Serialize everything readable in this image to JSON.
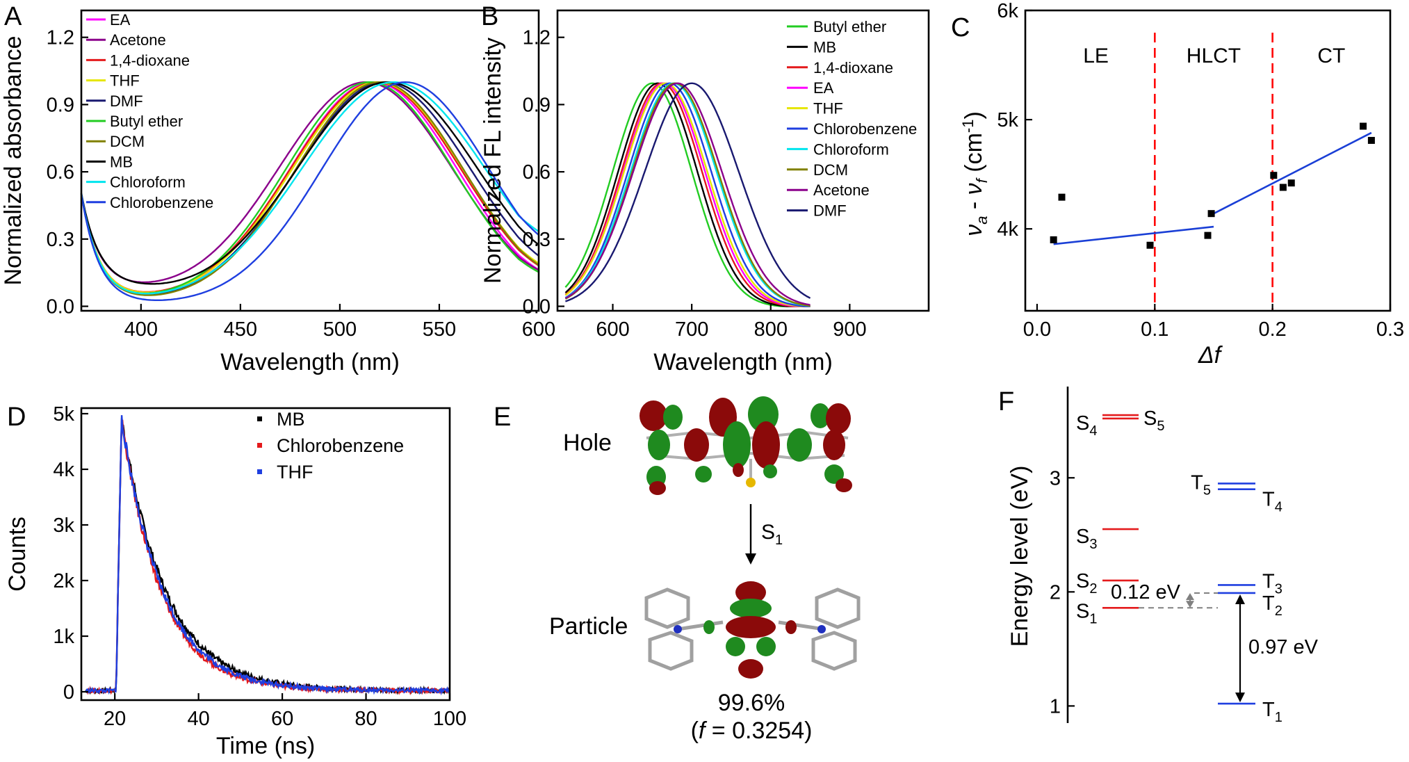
{
  "chart_data": [
    {
      "panel": "A",
      "type": "line",
      "xlabel": "Wavelength (nm)",
      "ylabel": "Normalized absorbance",
      "xlim": [
        370,
        600
      ],
      "ylim": [
        -0.02,
        1.32
      ],
      "xticks": [
        400,
        450,
        500,
        550,
        600
      ],
      "yticks": [
        0.0,
        0.3,
        0.6,
        0.9,
        1.2
      ],
      "xtick_labels": [
        "400",
        "450",
        "500",
        "550",
        "600"
      ],
      "ytick_labels": [
        "0.0",
        "0.3",
        "0.6",
        "0.9",
        "1.2"
      ],
      "series": [
        {
          "name": "EA",
          "color": "#ff00ff",
          "peak": 517,
          "fwhm": 100,
          "end": 0.05,
          "base": 0.02
        },
        {
          "name": "Acetone",
          "color": "#8b008b",
          "peak": 513,
          "fwhm": 104,
          "end": 0.06,
          "base": 0.07
        },
        {
          "name": "1,4-dioxane",
          "color": "#e41a1c",
          "peak": 518,
          "fwhm": 102,
          "end": 0.05,
          "base": 0.03
        },
        {
          "name": "THF",
          "color": "#e6e600",
          "peak": 519,
          "fwhm": 102,
          "end": 0.06,
          "base": 0.03
        },
        {
          "name": "DMF",
          "color": "#191970",
          "peak": 522,
          "fwhm": 104,
          "end": 0.05,
          "base": 0.02
        },
        {
          "name": "Butyl ether",
          "color": "#22cc22",
          "peak": 515,
          "fwhm": 100,
          "end": 0.06,
          "base": 0.02
        },
        {
          "name": "DCM",
          "color": "#808000",
          "peak": 520,
          "fwhm": 100,
          "end": 0.05,
          "base": 0.02
        },
        {
          "name": "MB",
          "color": "#000000",
          "peak": 524,
          "fwhm": 108,
          "end": 0.07,
          "base": 0.08
        },
        {
          "name": "Chloroform",
          "color": "#00e5ee",
          "peak": 527,
          "fwhm": 110,
          "end": 0.13,
          "base": 0.02
        },
        {
          "name": "Chlorobenzene",
          "color": "#1f3fe0",
          "peak": 533,
          "fwhm": 100,
          "end": 0.1,
          "base": 0.01
        }
      ]
    },
    {
      "panel": "B",
      "type": "line",
      "xlabel": "Wavelength (nm)",
      "ylabel": "Normalized FL intensity",
      "xlim": [
        530,
        1000
      ],
      "ylim": [
        -0.02,
        1.32
      ],
      "xticks": [
        600,
        700,
        800,
        900
      ],
      "yticks": [
        0.0,
        0.3,
        0.6,
        0.9,
        1.2
      ],
      "xtick_labels": [
        "600",
        "700",
        "800",
        "900"
      ],
      "ytick_labels": [
        "0.0",
        "0.3",
        "0.6",
        "0.9",
        "1.2"
      ],
      "x_range": [
        540,
        850
      ],
      "series": [
        {
          "name": "Butyl ether",
          "color": "#22cc22",
          "peak": 650,
          "fwhm": 118
        },
        {
          "name": "MB",
          "color": "#000000",
          "peak": 657,
          "fwhm": 118
        },
        {
          "name": "1,4-dioxane",
          "color": "#e41a1c",
          "peak": 662,
          "fwhm": 120
        },
        {
          "name": "EA",
          "color": "#ff00ff",
          "peak": 665,
          "fwhm": 122
        },
        {
          "name": "THF",
          "color": "#e6e600",
          "peak": 667,
          "fwhm": 124
        },
        {
          "name": "Chlorobenzene",
          "color": "#1f3fe0",
          "peak": 672,
          "fwhm": 124
        },
        {
          "name": "Chloroform",
          "color": "#00e5ee",
          "peak": 677,
          "fwhm": 128
        },
        {
          "name": "DCM",
          "color": "#808000",
          "peak": 679,
          "fwhm": 128
        },
        {
          "name": "Acetone",
          "color": "#8b008b",
          "peak": 682,
          "fwhm": 132
        },
        {
          "name": "DMF",
          "color": "#191970",
          "peak": 700,
          "fwhm": 140
        }
      ]
    },
    {
      "panel": "C",
      "type": "scatter",
      "xlabel": "Δf",
      "ylabel": "νa - νf (cm-1)",
      "ylabel_parts": {
        "nu": "ν",
        "a": "a",
        "minus": " - ",
        "f": "f",
        "unit": " (cm",
        "exp": "-1",
        "close": ")"
      },
      "xlim": [
        -0.01,
        0.3
      ],
      "ylim": [
        3250,
        6000
      ],
      "xticks": [
        0.0,
        0.1,
        0.2,
        0.3
      ],
      "xtick_labels": [
        "0.0",
        "0.1",
        "0.2",
        "0.3"
      ],
      "yticks": [
        4000,
        5000,
        6000
      ],
      "ytick_labels": [
        "4k",
        "5k",
        "6k"
      ],
      "regions": [
        {
          "label": "LE",
          "x": 0.05
        },
        {
          "label": "HLCT",
          "x": 0.15
        },
        {
          "label": "CT",
          "x": 0.25
        }
      ],
      "dividers": [
        0.1,
        0.2
      ],
      "points": [
        {
          "x": 0.014,
          "y": 3900
        },
        {
          "x": 0.021,
          "y": 4290
        },
        {
          "x": 0.096,
          "y": 3850
        },
        {
          "x": 0.145,
          "y": 3940
        },
        {
          "x": 0.148,
          "y": 4140
        },
        {
          "x": 0.201,
          "y": 4490
        },
        {
          "x": 0.209,
          "y": 4380
        },
        {
          "x": 0.216,
          "y": 4420
        },
        {
          "x": 0.277,
          "y": 4940
        },
        {
          "x": 0.284,
          "y": 4810
        }
      ],
      "fits": [
        {
          "x": [
            0.014,
            0.15
          ],
          "y": [
            3860,
            4020
          ]
        },
        {
          "x": [
            0.15,
            0.284
          ],
          "y": [
            4140,
            4880
          ]
        }
      ]
    },
    {
      "panel": "D",
      "type": "line",
      "xlabel": "Time (ns)",
      "ylabel": "Counts",
      "xlim": [
        12,
        100
      ],
      "ylim": [
        -150,
        5100
      ],
      "xticks": [
        20,
        40,
        60,
        80,
        100
      ],
      "xtick_labels": [
        "20",
        "40",
        "60",
        "80",
        "100"
      ],
      "yticks": [
        0,
        1000,
        2000,
        3000,
        4000,
        5000
      ],
      "ytick_labels": [
        "0",
        "1k",
        "2k",
        "3k",
        "4k",
        "5k"
      ],
      "series": [
        {
          "name": "MB",
          "color": "#000000",
          "tau": 10.5
        },
        {
          "name": "Chlorobenzene",
          "color": "#e41a1c",
          "tau": 9.4
        },
        {
          "name": "THF",
          "color": "#1f3fe0",
          "tau": 9.8
        }
      ]
    },
    {
      "panel": "F",
      "type": "diagram",
      "ylabel": "Energy level (eV)",
      "ylim": [
        0.85,
        3.8
      ],
      "yticks": [
        1,
        2,
        3
      ],
      "ytick_labels": [
        "1",
        "2",
        "3"
      ],
      "singlets": [
        {
          "name": "S",
          "sub": "1",
          "energy": 1.86
        },
        {
          "name": "S",
          "sub": "2",
          "energy": 2.1
        },
        {
          "name": "S",
          "sub": "3",
          "energy": 2.55
        },
        {
          "name": "S",
          "sub": "4",
          "energy": 3.52
        },
        {
          "name": "S",
          "sub": "5",
          "energy": 3.55
        }
      ],
      "triplets": [
        {
          "name": "T",
          "sub": "1",
          "energy": 1.02
        },
        {
          "name": "T",
          "sub": "2",
          "energy": 1.99
        },
        {
          "name": "T",
          "sub": "3",
          "energy": 2.06
        },
        {
          "name": "T",
          "sub": "4",
          "energy": 2.9
        },
        {
          "name": "T",
          "sub": "5",
          "energy": 2.95
        }
      ],
      "gap_st": "0.12 eV",
      "gap_tt": "0.97 eV"
    }
  ],
  "labels": {
    "A": "A",
    "B": "B",
    "C": "C",
    "D": "D",
    "E": "E",
    "F": "F"
  },
  "panel_e": {
    "hole": "Hole",
    "particle": "Particle",
    "transition": "S",
    "transition_sub": "1",
    "percent": "99.6%",
    "osc_prefix": "(",
    "osc_f": "f",
    "osc_value": " = 0.3254)"
  },
  "colors": {
    "red_line": "#e41a1c",
    "blue_line": "#1f3fe0",
    "orbital_red": "#8b0a0a",
    "orbital_green": "#1f8a1f"
  }
}
